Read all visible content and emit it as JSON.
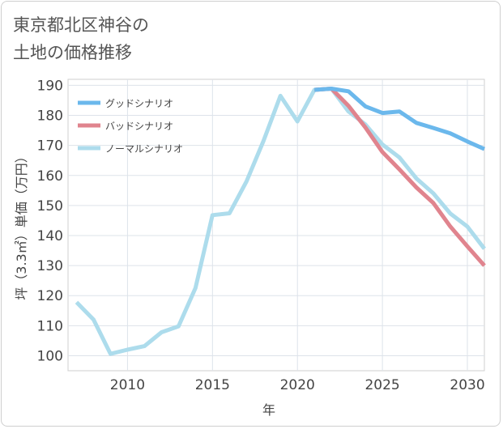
{
  "title_line1": "東京都北区神谷の",
  "title_line2": "土地の価格推移",
  "chart_data": {
    "type": "line",
    "xlabel": "年",
    "ylabel": "坪（3.3㎡）単価（万円）",
    "xlim": [
      2006.5,
      2031
    ],
    "ylim": [
      95,
      192
    ],
    "xticks": [
      2010,
      2015,
      2020,
      2025,
      2030
    ],
    "yticks": [
      100,
      110,
      120,
      130,
      140,
      150,
      160,
      170,
      180,
      190
    ],
    "grid": true,
    "legend_position": "top-left",
    "series": [
      {
        "name": "グッドシナリオ",
        "color": "#6bb8ec",
        "x": [
          2021,
          2022,
          2023,
          2024,
          2025,
          2026,
          2027,
          2028,
          2029,
          2030,
          2031
        ],
        "y": [
          188.5,
          188.9,
          188.0,
          183.0,
          180.8,
          181.3,
          177.5,
          175.8,
          174.0,
          171.3,
          168.8
        ]
      },
      {
        "name": "バッドシナリオ",
        "color": "#e0848e",
        "x": [
          2021,
          2022,
          2023,
          2024,
          2025,
          2026,
          2027,
          2028,
          2029,
          2030,
          2031
        ],
        "y": [
          188.5,
          188.9,
          183.2,
          176.0,
          167.8,
          162.0,
          156.0,
          150.8,
          143.0,
          136.4,
          130.0
        ]
      },
      {
        "name": "ノーマルシナリオ",
        "color": "#addcec",
        "x": [
          2007,
          2008,
          2009,
          2010,
          2011,
          2012,
          2013,
          2014,
          2015,
          2016,
          2017,
          2018,
          2019,
          2020,
          2021,
          2022,
          2023,
          2024,
          2025,
          2026,
          2027,
          2028,
          2029,
          2030,
          2031
        ],
        "y": [
          117.8,
          112.0,
          100.6,
          102.0,
          103.2,
          107.8,
          109.8,
          122.5,
          146.8,
          147.4,
          158.0,
          171.5,
          186.5,
          178.0,
          188.5,
          188.9,
          181.3,
          177.0,
          170.3,
          166.0,
          159.0,
          154.0,
          147.3,
          143.0,
          135.6
        ]
      }
    ]
  }
}
